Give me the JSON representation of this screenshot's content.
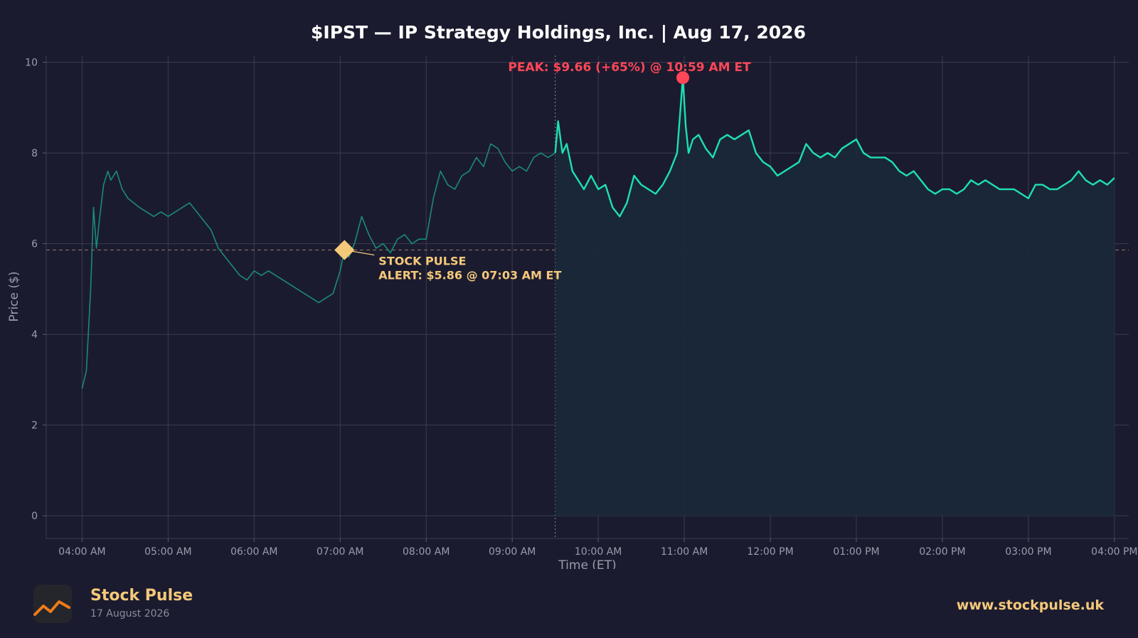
{
  "chart_data": {
    "type": "line",
    "title": "$IPST — IP Strategy Holdings, Inc.  |  Aug 17, 2026",
    "xlabel": "Time (ET)",
    "ylabel": "Price ($)",
    "xlim": [
      "03:35 AM",
      "04:10 PM"
    ],
    "ylim": [
      -0.5,
      10.15
    ],
    "yticks": [
      0,
      2,
      4,
      6,
      8,
      10
    ],
    "xticks": [
      "04:00 AM",
      "05:00 AM",
      "06:00 AM",
      "07:00 AM",
      "08:00 AM",
      "09:00 AM",
      "10:00 AM",
      "11:00 AM",
      "12:00 PM",
      "01:00 PM",
      "02:00 PM",
      "03:00 PM",
      "04:00 PM"
    ],
    "grid": true,
    "series": [
      {
        "x": [
          "04:00 AM",
          "04:03 AM",
          "04:06 AM",
          "04:08 AM",
          "04:10 AM",
          "04:12 AM",
          "04:15 AM",
          "04:18 AM",
          "04:20 AM",
          "04:24 AM",
          "04:28 AM",
          "04:32 AM",
          "04:36 AM",
          "04:40 AM",
          "04:45 AM",
          "04:50 AM",
          "04:55 AM",
          "05:00 AM",
          "05:05 AM",
          "05:10 AM",
          "05:15 AM",
          "05:20 AM",
          "05:25 AM",
          "05:30 AM",
          "05:35 AM",
          "05:40 AM",
          "05:45 AM",
          "05:50 AM",
          "05:55 AM",
          "06:00 AM",
          "06:05 AM",
          "06:10 AM",
          "06:15 AM",
          "06:20 AM",
          "06:25 AM",
          "06:30 AM",
          "06:35 AM",
          "06:40 AM",
          "06:45 AM",
          "06:50 AM",
          "06:55 AM",
          "07:00 AM",
          "07:03 AM",
          "07:06 AM",
          "07:10 AM",
          "07:15 AM",
          "07:20 AM",
          "07:25 AM",
          "07:30 AM",
          "07:35 AM",
          "07:40 AM",
          "07:45 AM",
          "07:50 AM",
          "07:55 AM",
          "08:00 AM",
          "08:05 AM",
          "08:10 AM",
          "08:15 AM",
          "08:20 AM",
          "08:25 AM",
          "08:30 AM",
          "08:35 AM",
          "08:40 AM",
          "08:45 AM",
          "08:50 AM",
          "08:55 AM",
          "09:00 AM",
          "09:05 AM",
          "09:10 AM",
          "09:15 AM",
          "09:20 AM",
          "09:25 AM",
          "09:30 AM"
        ],
        "values": [
          2.8,
          3.2,
          5.0,
          6.8,
          5.9,
          6.5,
          7.3,
          7.6,
          7.4,
          7.6,
          7.2,
          7.0,
          6.9,
          6.8,
          6.7,
          6.6,
          6.7,
          6.6,
          6.7,
          6.8,
          6.9,
          6.7,
          6.5,
          6.3,
          5.9,
          5.7,
          5.5,
          5.3,
          5.2,
          5.4,
          5.3,
          5.4,
          5.3,
          5.2,
          5.1,
          5.0,
          4.9,
          4.8,
          4.7,
          4.8,
          4.9,
          5.4,
          5.86,
          5.7,
          6.0,
          6.6,
          6.2,
          5.9,
          6.0,
          5.8,
          6.1,
          6.2,
          6.0,
          6.1,
          6.1,
          7.0,
          7.6,
          7.3,
          7.2,
          7.5,
          7.6,
          7.9,
          7.7,
          8.2,
          8.1,
          7.8,
          7.6,
          7.7,
          7.6,
          7.9,
          8.0,
          7.9,
          8.0
        ]
      },
      {
        "x": [
          "09:30 AM",
          "09:32 AM",
          "09:35 AM",
          "09:38 AM",
          "09:42 AM",
          "09:46 AM",
          "09:50 AM",
          "09:55 AM",
          "10:00 AM",
          "10:05 AM",
          "10:10 AM",
          "10:15 AM",
          "10:20 AM",
          "10:25 AM",
          "10:30 AM",
          "10:35 AM",
          "10:40 AM",
          "10:45 AM",
          "10:50 AM",
          "10:55 AM",
          "10:59 AM",
          "11:01 AM",
          "11:03 AM",
          "11:06 AM",
          "11:10 AM",
          "11:15 AM",
          "11:20 AM",
          "11:25 AM",
          "11:30 AM",
          "11:35 AM",
          "11:40 AM",
          "11:45 AM",
          "11:50 AM",
          "11:55 AM",
          "12:00 PM",
          "12:05 PM",
          "12:10 PM",
          "12:15 PM",
          "12:20 PM",
          "12:25 PM",
          "12:30 PM",
          "12:35 PM",
          "12:40 PM",
          "12:45 PM",
          "12:50 PM",
          "12:55 PM",
          "01:00 PM",
          "01:05 PM",
          "01:10 PM",
          "01:15 PM",
          "01:20 PM",
          "01:25 PM",
          "01:30 PM",
          "01:35 PM",
          "01:40 PM",
          "01:45 PM",
          "01:50 PM",
          "01:55 PM",
          "02:00 PM",
          "02:05 PM",
          "02:10 PM",
          "02:15 PM",
          "02:20 PM",
          "02:25 PM",
          "02:30 PM",
          "02:35 PM",
          "02:40 PM",
          "02:45 PM",
          "02:50 PM",
          "02:55 PM",
          "03:00 PM",
          "03:05 PM",
          "03:10 PM",
          "03:15 PM",
          "03:20 PM",
          "03:25 PM",
          "03:30 PM",
          "03:35 PM",
          "03:40 PM",
          "03:45 PM",
          "03:50 PM",
          "03:55 PM",
          "04:00 PM"
        ],
        "values": [
          8.0,
          8.7,
          8.0,
          8.2,
          7.6,
          7.4,
          7.2,
          7.5,
          7.2,
          7.3,
          6.8,
          6.6,
          6.9,
          7.5,
          7.3,
          7.2,
          7.1,
          7.3,
          7.6,
          8.0,
          9.66,
          8.6,
          8.0,
          8.3,
          8.4,
          8.1,
          7.9,
          8.3,
          8.4,
          8.3,
          8.4,
          8.5,
          8.0,
          7.8,
          7.7,
          7.5,
          7.6,
          7.7,
          7.8,
          8.2,
          8.0,
          7.9,
          8.0,
          7.9,
          8.1,
          8.2,
          8.3,
          8.0,
          7.9,
          7.9,
          7.9,
          7.8,
          7.6,
          7.5,
          7.6,
          7.4,
          7.2,
          7.1,
          7.2,
          7.2,
          7.1,
          7.2,
          7.4,
          7.3,
          7.4,
          7.3,
          7.2,
          7.2,
          7.2,
          7.1,
          7.0,
          7.3,
          7.3,
          7.2,
          7.2,
          7.3,
          7.4,
          7.6,
          7.4,
          7.3,
          7.4,
          7.3,
          7.45
        ]
      }
    ],
    "regular_session_start": "09:30 AM",
    "reference_line": 5.86,
    "annotations": {
      "peak": {
        "x": "10:59 AM",
        "y": 9.66,
        "label": "PEAK: $9.66 (+65%) @ 10:59 AM ET"
      },
      "alert": {
        "x": "07:03 AM",
        "y": 5.86,
        "label_line1": "STOCK PULSE",
        "label_line2": "ALERT: $5.86 @ 07:03 AM ET"
      }
    },
    "colors": {
      "background": "#1b1b2f",
      "premarket_line": "#1a8a78",
      "regular_line": "#1de0b0",
      "fill": "#19283a",
      "peak": "#ff4757",
      "alert": "#f5c97a",
      "text": "#ffffff",
      "axis_text": "#9a9cab"
    }
  },
  "footer": {
    "brand": "Stock Pulse",
    "date": "17 August 2026",
    "website": "www.stockpulse.uk",
    "logo_icon": "trend-line-icon"
  }
}
